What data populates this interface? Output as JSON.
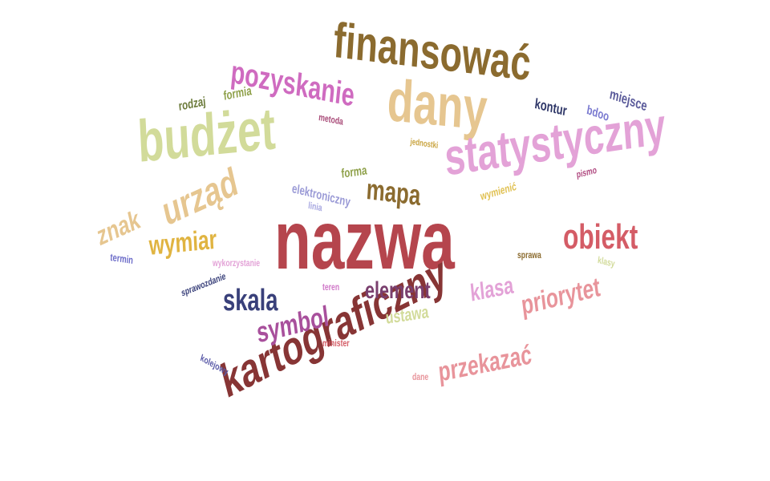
{
  "words": [
    {
      "text": "nazwa",
      "color": "#b5454d"
    },
    {
      "text": "finansować",
      "color": "#8b6b2f"
    },
    {
      "text": "dany",
      "color": "#e6c690"
    },
    {
      "text": "budżet",
      "color": "#d2db9a"
    },
    {
      "text": "statystyczny",
      "color": "#e3a2d7"
    },
    {
      "text": "kartograficzny",
      "color": "#873535"
    },
    {
      "text": "pozyskanie",
      "color": "#cf6bc0"
    },
    {
      "text": "urząd",
      "color": "#e6c690"
    },
    {
      "text": "znak",
      "color": "#e6c690"
    },
    {
      "text": "wymiar",
      "color": "#e0b441"
    },
    {
      "text": "mapa",
      "color": "#8b6b2f"
    },
    {
      "text": "obiekt",
      "color": "#d45c66"
    },
    {
      "text": "priorytet",
      "color": "#e8949b"
    },
    {
      "text": "skala",
      "color": "#39407a"
    },
    {
      "text": "element",
      "color": "#7a3f6e"
    },
    {
      "text": "klasa",
      "color": "#e3a2d7"
    },
    {
      "text": "symbol",
      "color": "#a8509c"
    },
    {
      "text": "przekazać",
      "color": "#e8949b"
    },
    {
      "text": "ustawa",
      "color": "#d2db9a"
    },
    {
      "text": "miejsce",
      "color": "#5a5a9a"
    },
    {
      "text": "kontur",
      "color": "#2f3768"
    },
    {
      "text": "bdoo",
      "color": "#7a7ad0"
    },
    {
      "text": "rodzaj",
      "color": "#6b7a3a"
    },
    {
      "text": "formia",
      "color": "#8fa14a"
    },
    {
      "text": "metoda",
      "color": "#a84a78"
    },
    {
      "text": "jednostki",
      "color": "#c9a440"
    },
    {
      "text": "pismo",
      "color": "#b04a80"
    },
    {
      "text": "forma",
      "color": "#8fa14a"
    },
    {
      "text": "elektroniczny",
      "color": "#9a9ad6"
    },
    {
      "text": "linia",
      "color": "#a6a6e0"
    },
    {
      "text": "wymienić",
      "color": "#e0c050"
    },
    {
      "text": "termin",
      "color": "#6b6bc8"
    },
    {
      "text": "wykorzystanie",
      "color": "#e3a2d7"
    },
    {
      "text": "sprawa",
      "color": "#8b6b2f"
    },
    {
      "text": "klasy",
      "color": "#d2db9a"
    },
    {
      "text": "sprawozdanie",
      "color": "#39407a"
    },
    {
      "text": "teren",
      "color": "#d078c8"
    },
    {
      "text": "minister",
      "color": "#d45c66"
    },
    {
      "text": "kolejowy",
      "color": "#5a5aa8"
    },
    {
      "text": "dane",
      "color": "#e8949b"
    }
  ]
}
